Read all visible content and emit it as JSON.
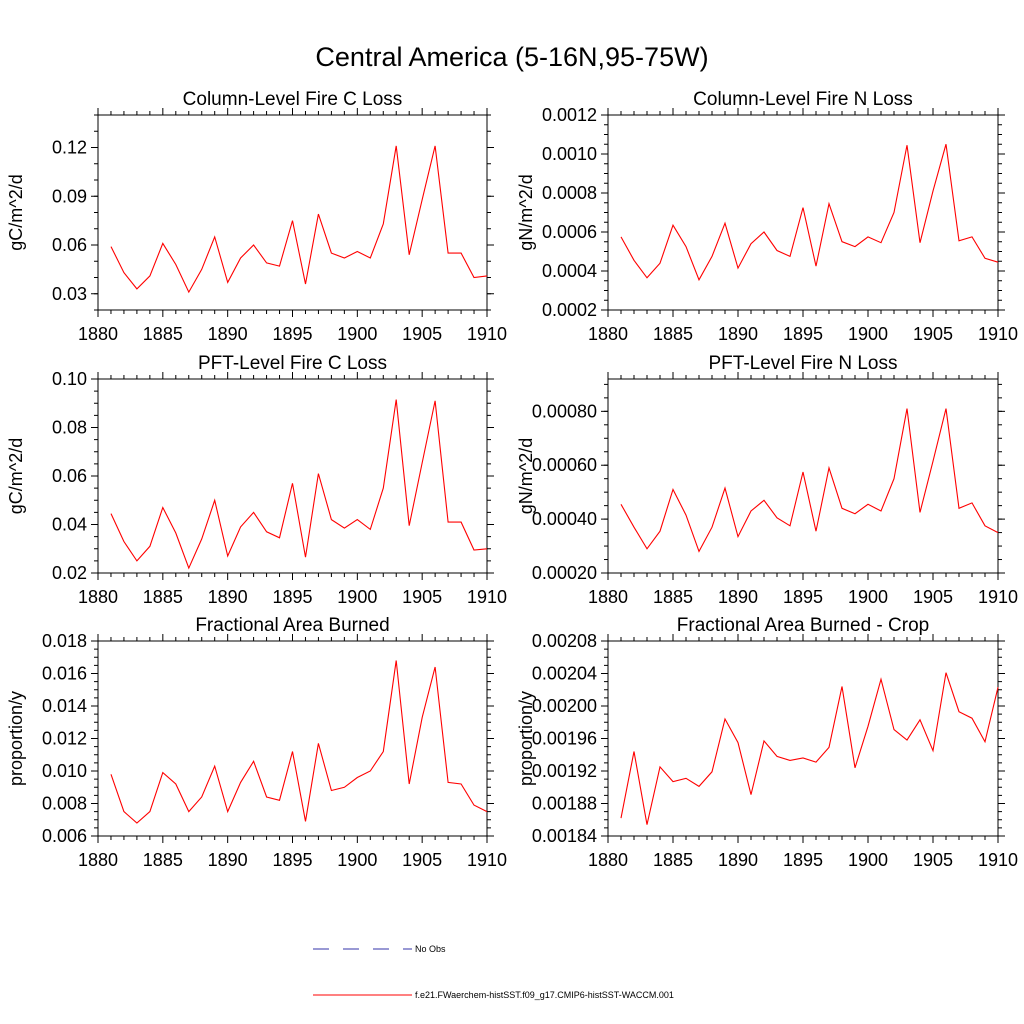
{
  "figure": {
    "title": "Central America (5-16N,95-75W)"
  },
  "legend": {
    "placement": "bottom-center",
    "entries": [
      {
        "label": "No Obs",
        "style": "dashed",
        "color": "#3333aa"
      },
      {
        "label": "f.e21.FWaerchem-histSST.f09_g17.CMIP6-histSST-WACCM.001",
        "style": "solid",
        "color": "#ff0000"
      }
    ]
  },
  "chart_data": [
    {
      "type": "line",
      "title": "Column-Level Fire C Loss",
      "ylabel": "gC/m^2/d",
      "xlim": [
        1880,
        1910
      ],
      "ylim": [
        0.02,
        0.14
      ],
      "xticks": [
        1880,
        1885,
        1890,
        1895,
        1900,
        1905,
        1910
      ],
      "yticks": [
        "0.03",
        "0.06",
        "0.09",
        "0.12"
      ],
      "yminor": 0.01,
      "series": [
        {
          "color": "#ff0000",
          "x": [
            1881,
            1882,
            1883,
            1884,
            1885,
            1886,
            1887,
            1888,
            1889,
            1890,
            1891,
            1892,
            1893,
            1894,
            1895,
            1896,
            1897,
            1898,
            1899,
            1900,
            1901,
            1902,
            1903,
            1904,
            1905,
            1906,
            1907,
            1908,
            1909,
            1910
          ],
          "values": [
            0.059,
            0.043,
            0.033,
            0.041,
            0.061,
            0.048,
            0.031,
            0.045,
            0.065,
            0.037,
            0.052,
            0.06,
            0.049,
            0.047,
            0.075,
            0.036,
            0.079,
            0.055,
            0.052,
            0.056,
            0.052,
            0.073,
            0.121,
            0.054,
            0.088,
            0.121,
            0.055,
            0.055,
            0.04,
            0.041
          ]
        }
      ]
    },
    {
      "type": "line",
      "title": "Column-Level Fire N Loss",
      "ylabel": "gN/m^2/d",
      "xlim": [
        1880,
        1910
      ],
      "ylim": [
        0.0002,
        0.0012
      ],
      "xticks": [
        1880,
        1885,
        1890,
        1895,
        1900,
        1905,
        1910
      ],
      "yticks": [
        "0.0002",
        "0.0004",
        "0.0006",
        "0.0008",
        "0.0010",
        "0.0012"
      ],
      "yminor": 5e-05,
      "series": [
        {
          "color": "#ff0000",
          "x": [
            1881,
            1882,
            1883,
            1884,
            1885,
            1886,
            1887,
            1888,
            1889,
            1890,
            1891,
            1892,
            1893,
            1894,
            1895,
            1896,
            1897,
            1898,
            1899,
            1900,
            1901,
            1902,
            1903,
            1904,
            1905,
            1906,
            1907,
            1908,
            1909,
            1910
          ],
          "values": [
            0.000575,
            0.000455,
            0.000365,
            0.00044,
            0.000635,
            0.000525,
            0.000355,
            0.000475,
            0.000645,
            0.000415,
            0.00054,
            0.0006,
            0.000505,
            0.000475,
            0.000725,
            0.000425,
            0.000745,
            0.00055,
            0.000525,
            0.000575,
            0.000545,
            0.0007,
            0.001045,
            0.000545,
            0.00081,
            0.00105,
            0.000555,
            0.000575,
            0.000465,
            0.000445
          ]
        }
      ]
    },
    {
      "type": "line",
      "title": "PFT-Level Fire C Loss",
      "ylabel": "gC/m^2/d",
      "xlim": [
        1880,
        1910
      ],
      "ylim": [
        0.02,
        0.1
      ],
      "xticks": [
        1880,
        1885,
        1890,
        1895,
        1900,
        1905,
        1910
      ],
      "yticks": [
        "0.02",
        "0.04",
        "0.06",
        "0.08",
        "0.10"
      ],
      "yminor": 0.005,
      "series": [
        {
          "color": "#ff0000",
          "x": [
            1881,
            1882,
            1883,
            1884,
            1885,
            1886,
            1887,
            1888,
            1889,
            1890,
            1891,
            1892,
            1893,
            1894,
            1895,
            1896,
            1897,
            1898,
            1899,
            1900,
            1901,
            1902,
            1903,
            1904,
            1905,
            1906,
            1907,
            1908,
            1909,
            1910
          ],
          "values": [
            0.0445,
            0.033,
            0.025,
            0.031,
            0.047,
            0.0365,
            0.022,
            0.034,
            0.05,
            0.027,
            0.039,
            0.045,
            0.037,
            0.0345,
            0.057,
            0.0265,
            0.061,
            0.042,
            0.0385,
            0.042,
            0.038,
            0.055,
            0.0915,
            0.0395,
            0.0655,
            0.091,
            0.041,
            0.041,
            0.0295,
            0.03
          ]
        }
      ]
    },
    {
      "type": "line",
      "title": "PFT-Level Fire N Loss",
      "ylabel": "gN/m^2/d",
      "xlim": [
        1880,
        1910
      ],
      "ylim": [
        0.0002,
        0.00092
      ],
      "xticks": [
        1880,
        1885,
        1890,
        1895,
        1900,
        1905,
        1910
      ],
      "yticks": [
        "0.00020",
        "0.00040",
        "0.00060",
        "0.00080"
      ],
      "yminor": 5e-05,
      "series": [
        {
          "color": "#ff0000",
          "x": [
            1881,
            1882,
            1883,
            1884,
            1885,
            1886,
            1887,
            1888,
            1889,
            1890,
            1891,
            1892,
            1893,
            1894,
            1895,
            1896,
            1897,
            1898,
            1899,
            1900,
            1901,
            1902,
            1903,
            1904,
            1905,
            1906,
            1907,
            1908,
            1909,
            1910
          ],
          "values": [
            0.000455,
            0.00037,
            0.00029,
            0.000355,
            0.00051,
            0.000415,
            0.00028,
            0.00037,
            0.000515,
            0.000335,
            0.00043,
            0.00047,
            0.000405,
            0.000375,
            0.000575,
            0.000355,
            0.00059,
            0.00044,
            0.00042,
            0.000455,
            0.00043,
            0.00055,
            0.00081,
            0.000425,
            0.000615,
            0.00081,
            0.00044,
            0.00046,
            0.000375,
            0.00035
          ]
        }
      ]
    },
    {
      "type": "line",
      "title": "Fractional Area Burned",
      "ylabel": "proportion/y",
      "xlim": [
        1880,
        1910
      ],
      "ylim": [
        0.006,
        0.018
      ],
      "xticks": [
        1880,
        1885,
        1890,
        1895,
        1900,
        1905,
        1910
      ],
      "yticks": [
        "0.006",
        "0.008",
        "0.010",
        "0.012",
        "0.014",
        "0.016",
        "0.018"
      ],
      "yminor": 0.0005,
      "series": [
        {
          "color": "#ff0000",
          "x": [
            1881,
            1882,
            1883,
            1884,
            1885,
            1886,
            1887,
            1888,
            1889,
            1890,
            1891,
            1892,
            1893,
            1894,
            1895,
            1896,
            1897,
            1898,
            1899,
            1900,
            1901,
            1902,
            1903,
            1904,
            1905,
            1906,
            1907,
            1908,
            1909,
            1910
          ],
          "values": [
            0.0098,
            0.0075,
            0.0068,
            0.0075,
            0.0099,
            0.0092,
            0.0075,
            0.0084,
            0.0103,
            0.0075,
            0.0093,
            0.0106,
            0.0084,
            0.0082,
            0.0112,
            0.0069,
            0.0117,
            0.0088,
            0.009,
            0.0096,
            0.01,
            0.0112,
            0.0168,
            0.0092,
            0.0133,
            0.0164,
            0.0093,
            0.0092,
            0.0079,
            0.0075
          ]
        }
      ]
    },
    {
      "type": "line",
      "title": "Fractional Area Burned - Crop",
      "ylabel": "proportion/y",
      "xlim": [
        1880,
        1910
      ],
      "ylim": [
        0.00184,
        0.00208
      ],
      "xticks": [
        1880,
        1885,
        1890,
        1895,
        1900,
        1905,
        1910
      ],
      "yticks": [
        "0.00184",
        "0.00188",
        "0.00192",
        "0.00196",
        "0.00200",
        "0.00204",
        "0.00208"
      ],
      "yminor": 1e-05,
      "series": [
        {
          "color": "#ff0000",
          "x": [
            1881,
            1882,
            1883,
            1884,
            1885,
            1886,
            1887,
            1888,
            1889,
            1890,
            1891,
            1892,
            1893,
            1894,
            1895,
            1896,
            1897,
            1898,
            1899,
            1900,
            1901,
            1902,
            1903,
            1904,
            1905,
            1906,
            1907,
            1908,
            1909,
            1910
          ],
          "values": [
            0.001862,
            0.001944,
            0.001854,
            0.001925,
            0.001907,
            0.001911,
            0.001901,
            0.001919,
            0.001984,
            0.001955,
            0.001891,
            0.001957,
            0.001938,
            0.001933,
            0.001936,
            0.001931,
            0.001949,
            0.002024,
            0.001924,
            0.001975,
            0.002033,
            0.001971,
            0.001958,
            0.001983,
            0.001945,
            0.002041,
            0.001993,
            0.001985,
            0.001956,
            0.002023
          ]
        }
      ]
    }
  ]
}
